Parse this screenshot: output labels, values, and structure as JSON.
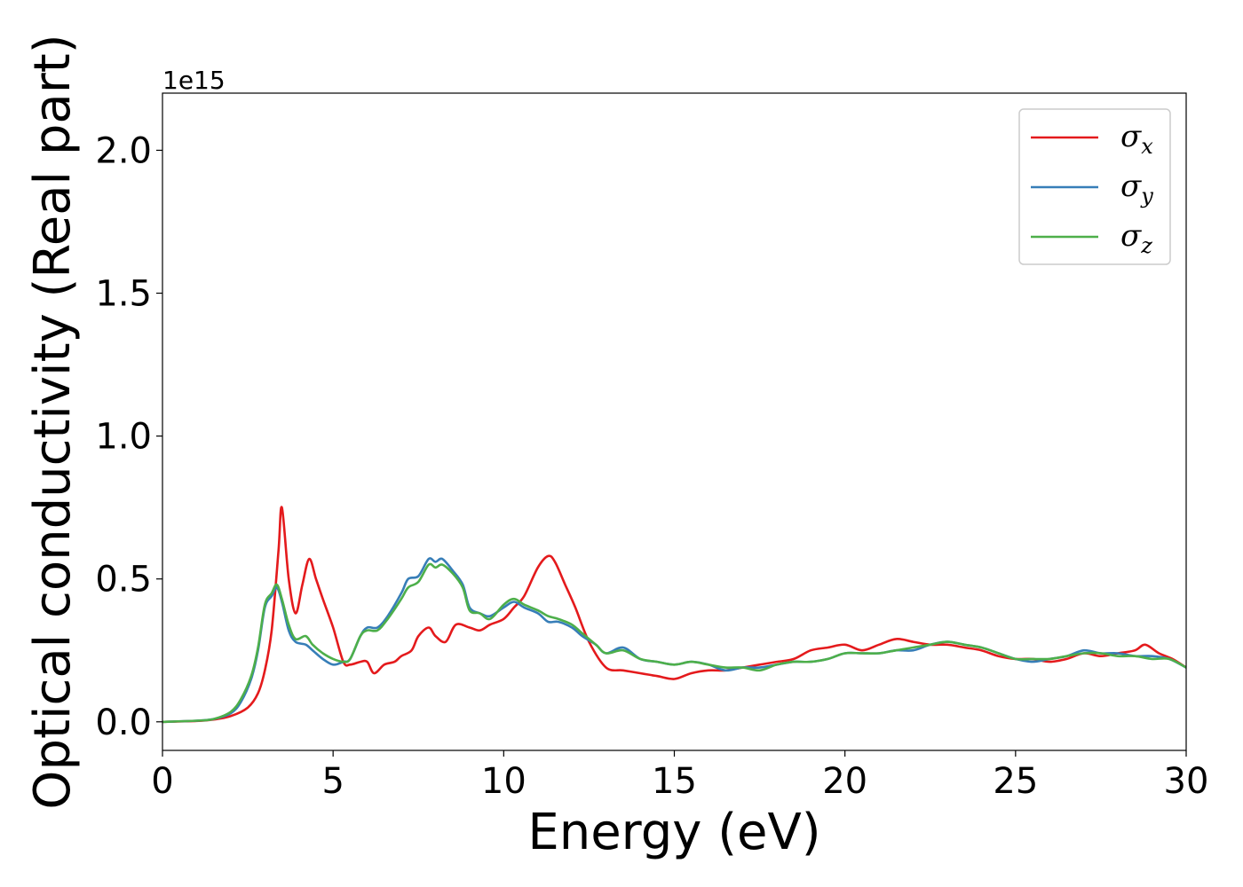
{
  "chart_data": {
    "type": "line",
    "title": "",
    "xlabel": "Energy (eV)",
    "ylabel": "Optical conductivity (Real part)",
    "y_offset_label": "1e15",
    "xlim": [
      0,
      30
    ],
    "ylim": [
      -0.1,
      2.2
    ],
    "x_ticks": [
      0,
      5,
      10,
      15,
      20,
      25,
      30
    ],
    "x_tick_labels": [
      "0",
      "5",
      "10",
      "15",
      "20",
      "25",
      "30"
    ],
    "y_ticks": [
      0.0,
      0.5,
      1.0,
      1.5,
      2.0
    ],
    "y_tick_labels": [
      "0.0",
      "0.5",
      "1.0",
      "1.5",
      "2.0"
    ],
    "grid": false,
    "legend_position": "top-right",
    "series": [
      {
        "name": "σx",
        "symbol": "σ",
        "subscript": "x",
        "color": "#e41a1c",
        "x": [
          0,
          1,
          1.5,
          2,
          2.5,
          2.8,
          3.0,
          3.2,
          3.4,
          3.5,
          3.7,
          3.9,
          4.1,
          4.3,
          4.5,
          4.7,
          5.0,
          5.3,
          5.5,
          5.8,
          6.0,
          6.2,
          6.5,
          6.8,
          7.0,
          7.3,
          7.5,
          7.8,
          8.0,
          8.3,
          8.6,
          9.0,
          9.3,
          9.6,
          10.0,
          10.3,
          10.6,
          11.0,
          11.3,
          11.5,
          11.8,
          12.1,
          12.5,
          13.0,
          13.5,
          14.0,
          14.5,
          15.0,
          15.5,
          16.0,
          16.5,
          17.0,
          17.5,
          18.0,
          18.5,
          19.0,
          19.5,
          20.0,
          20.5,
          21.0,
          21.5,
          22.0,
          22.5,
          23.0,
          23.5,
          24.0,
          24.5,
          25.0,
          25.5,
          26.0,
          26.5,
          27.0,
          27.5,
          28.0,
          28.5,
          28.8,
          29.2,
          29.6,
          30.0
        ],
        "y": [
          0.0,
          0.003,
          0.008,
          0.02,
          0.05,
          0.1,
          0.18,
          0.32,
          0.6,
          0.75,
          0.5,
          0.38,
          0.48,
          0.57,
          0.5,
          0.43,
          0.33,
          0.21,
          0.2,
          0.21,
          0.21,
          0.17,
          0.2,
          0.21,
          0.23,
          0.25,
          0.3,
          0.33,
          0.3,
          0.28,
          0.34,
          0.33,
          0.32,
          0.34,
          0.36,
          0.4,
          0.44,
          0.54,
          0.58,
          0.56,
          0.48,
          0.4,
          0.28,
          0.19,
          0.18,
          0.17,
          0.16,
          0.15,
          0.17,
          0.18,
          0.18,
          0.19,
          0.2,
          0.21,
          0.22,
          0.25,
          0.26,
          0.27,
          0.25,
          0.27,
          0.29,
          0.28,
          0.27,
          0.27,
          0.26,
          0.25,
          0.23,
          0.22,
          0.22,
          0.21,
          0.22,
          0.24,
          0.23,
          0.24,
          0.25,
          0.27,
          0.24,
          0.22,
          0.19
        ]
      },
      {
        "name": "σy",
        "symbol": "σ",
        "subscript": "y",
        "color": "#377eb8",
        "x": [
          0,
          1,
          1.5,
          2,
          2.3,
          2.6,
          2.8,
          3.0,
          3.2,
          3.35,
          3.5,
          3.7,
          3.9,
          4.2,
          4.4,
          4.7,
          5.0,
          5.3,
          5.5,
          5.8,
          6.0,
          6.3,
          6.6,
          7.0,
          7.2,
          7.5,
          7.8,
          8.0,
          8.2,
          8.5,
          8.8,
          9.0,
          9.3,
          9.6,
          10.0,
          10.3,
          10.6,
          11.0,
          11.3,
          11.6,
          12.0,
          12.3,
          12.7,
          13.0,
          13.5,
          14.0,
          14.5,
          15.0,
          15.5,
          16.0,
          16.5,
          17.0,
          17.5,
          18.0,
          18.5,
          19.0,
          19.5,
          20.0,
          20.5,
          21.0,
          21.5,
          22.0,
          22.5,
          23.0,
          23.5,
          24.0,
          24.5,
          25.0,
          25.5,
          26.0,
          26.5,
          27.0,
          27.5,
          28.0,
          28.5,
          29.0,
          29.5,
          30.0
        ],
        "y": [
          0.0,
          0.004,
          0.01,
          0.03,
          0.07,
          0.15,
          0.25,
          0.4,
          0.44,
          0.47,
          0.42,
          0.32,
          0.28,
          0.27,
          0.25,
          0.22,
          0.2,
          0.21,
          0.22,
          0.3,
          0.33,
          0.33,
          0.37,
          0.45,
          0.5,
          0.51,
          0.57,
          0.56,
          0.57,
          0.53,
          0.48,
          0.4,
          0.38,
          0.37,
          0.4,
          0.42,
          0.4,
          0.38,
          0.35,
          0.35,
          0.33,
          0.3,
          0.27,
          0.24,
          0.26,
          0.22,
          0.21,
          0.2,
          0.21,
          0.2,
          0.18,
          0.19,
          0.19,
          0.2,
          0.21,
          0.21,
          0.22,
          0.24,
          0.24,
          0.24,
          0.25,
          0.25,
          0.27,
          0.28,
          0.27,
          0.26,
          0.24,
          0.22,
          0.21,
          0.22,
          0.23,
          0.25,
          0.24,
          0.24,
          0.23,
          0.23,
          0.22,
          0.19
        ]
      },
      {
        "name": "σz",
        "symbol": "σ",
        "subscript": "z",
        "color": "#4daf4a",
        "x": [
          0,
          1,
          1.5,
          2,
          2.3,
          2.6,
          2.8,
          3.0,
          3.2,
          3.35,
          3.5,
          3.7,
          3.9,
          4.2,
          4.4,
          4.7,
          5.0,
          5.3,
          5.5,
          5.8,
          6.0,
          6.3,
          6.6,
          7.0,
          7.2,
          7.5,
          7.8,
          8.0,
          8.2,
          8.5,
          8.8,
          9.0,
          9.3,
          9.6,
          10.0,
          10.3,
          10.6,
          11.0,
          11.3,
          11.6,
          12.0,
          12.3,
          12.7,
          13.0,
          13.5,
          14.0,
          14.5,
          15.0,
          15.5,
          16.0,
          16.5,
          17.0,
          17.5,
          18.0,
          18.5,
          19.0,
          19.5,
          20.0,
          20.5,
          21.0,
          21.5,
          22.0,
          22.5,
          23.0,
          23.5,
          24.0,
          24.5,
          25.0,
          25.5,
          26.0,
          26.5,
          27.0,
          27.5,
          28.0,
          28.5,
          29.0,
          29.5,
          30.0
        ],
        "y": [
          0.0,
          0.004,
          0.01,
          0.035,
          0.08,
          0.16,
          0.26,
          0.41,
          0.45,
          0.48,
          0.43,
          0.34,
          0.29,
          0.3,
          0.27,
          0.24,
          0.22,
          0.21,
          0.22,
          0.3,
          0.32,
          0.32,
          0.36,
          0.43,
          0.47,
          0.49,
          0.55,
          0.54,
          0.55,
          0.52,
          0.47,
          0.39,
          0.38,
          0.36,
          0.41,
          0.43,
          0.41,
          0.39,
          0.37,
          0.36,
          0.34,
          0.31,
          0.27,
          0.24,
          0.25,
          0.22,
          0.21,
          0.2,
          0.21,
          0.2,
          0.19,
          0.19,
          0.18,
          0.2,
          0.21,
          0.21,
          0.22,
          0.24,
          0.24,
          0.24,
          0.25,
          0.26,
          0.27,
          0.28,
          0.27,
          0.26,
          0.24,
          0.22,
          0.22,
          0.22,
          0.23,
          0.24,
          0.24,
          0.23,
          0.23,
          0.22,
          0.22,
          0.19
        ]
      }
    ]
  }
}
